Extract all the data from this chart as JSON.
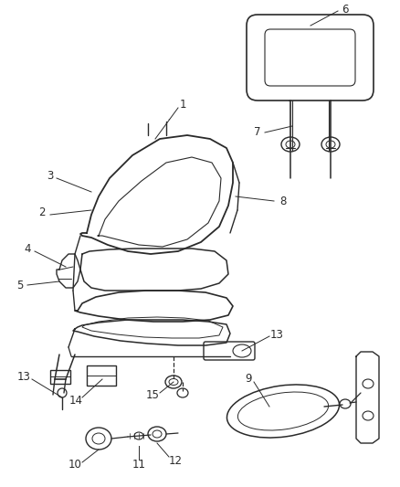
{
  "bg_color": "#ffffff",
  "line_color": "#2a2a2a",
  "label_color": "#2a2a2a",
  "figsize": [
    4.38,
    5.33
  ],
  "dpi": 100
}
